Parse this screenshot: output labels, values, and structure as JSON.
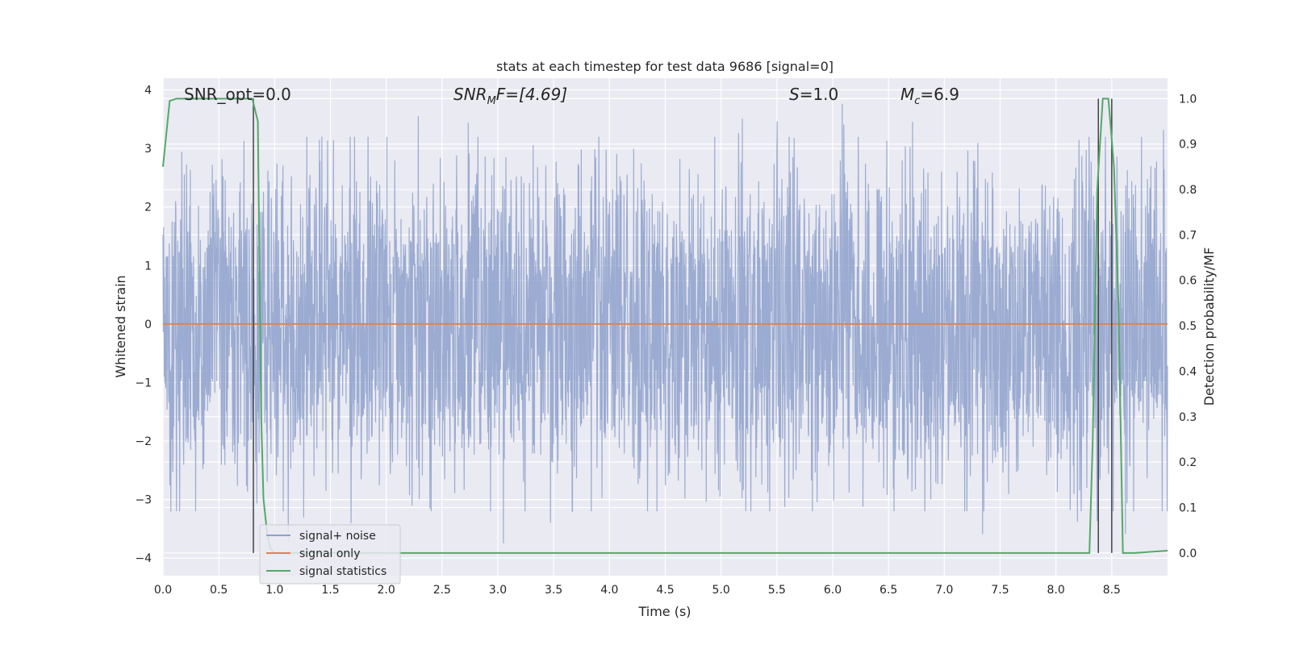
{
  "chart_data": {
    "type": "line",
    "title": "stats at each timestep for test data 9686 [signal=0]",
    "xlabel": "Time (s)",
    "ylabel_left": "Whitened strain",
    "ylabel_right": "Detection probability/MF",
    "xlim": [
      0.0,
      9.0
    ],
    "ylim_left": [
      -4.3,
      4.2
    ],
    "ylim_right": [
      -0.05,
      1.045
    ],
    "x_ticks": [
      "0.0",
      "0.5",
      "1.0",
      "1.5",
      "2.0",
      "2.5",
      "3.0",
      "3.5",
      "4.0",
      "4.5",
      "5.0",
      "5.5",
      "6.0",
      "6.5",
      "7.0",
      "7.5",
      "8.0",
      "8.5"
    ],
    "y_ticks_left": [
      "−4",
      "−3",
      "−2",
      "−1",
      "0",
      "1",
      "2",
      "3",
      "4"
    ],
    "y_ticks_right": [
      "0.0",
      "0.1",
      "0.2",
      "0.3",
      "0.4",
      "0.5",
      "0.6",
      "0.7",
      "0.8",
      "0.9",
      "1.0"
    ],
    "grid": true,
    "legend": {
      "position": "lower-left",
      "entries": [
        "signal+ noise",
        "signal only",
        "signal statistics"
      ]
    },
    "annotations": {
      "snr_opt": "SNR_opt=0.0",
      "snr_mf_base": "SNR",
      "snr_mf_sub": "M",
      "snr_mf_rest": "F=[4.69]",
      "s_var": "S",
      "s_rest": "=1.0",
      "mc_base": "M",
      "mc_sub": "c",
      "mc_rest": "=6.9"
    },
    "series": [
      {
        "name": "signal+ noise",
        "axis": "left",
        "color": "#8da0cb",
        "description_stats": {
          "t_start": 0.0,
          "t_end": 9.0,
          "typical_abs": 1.4,
          "max_peak": 3.85,
          "min_peak": -3.9
        }
      },
      {
        "name": "signal only",
        "axis": "left",
        "color": "#dd8452",
        "x": [
          0.0,
          9.0
        ],
        "y": [
          0.0,
          0.0
        ]
      },
      {
        "name": "signal statistics",
        "axis": "right",
        "color": "#55a868",
        "x": [
          0.0,
          0.06,
          0.12,
          0.2,
          0.3,
          0.5,
          0.7,
          0.8,
          0.82,
          0.85,
          0.87,
          0.88,
          0.9,
          0.93,
          0.96,
          1.0,
          2.0,
          4.0,
          6.0,
          8.0,
          8.3,
          8.33,
          8.37,
          8.42,
          8.47,
          8.52,
          8.56,
          8.6,
          8.64,
          8.7,
          9.0
        ],
        "y": [
          0.85,
          0.995,
          1.0,
          1.0,
          1.0,
          1.0,
          1.0,
          1.0,
          0.98,
          0.95,
          0.5,
          0.3,
          0.12,
          0.05,
          0.01,
          0.0,
          0.0,
          0.0,
          0.0,
          0.0,
          0.0,
          0.25,
          0.8,
          1.0,
          1.0,
          0.85,
          0.55,
          0.0,
          0.0,
          0.0,
          0.005
        ]
      }
    ],
    "vertical_markers": {
      "color": "#444444",
      "x": [
        0.81,
        8.38,
        8.5
      ]
    }
  }
}
